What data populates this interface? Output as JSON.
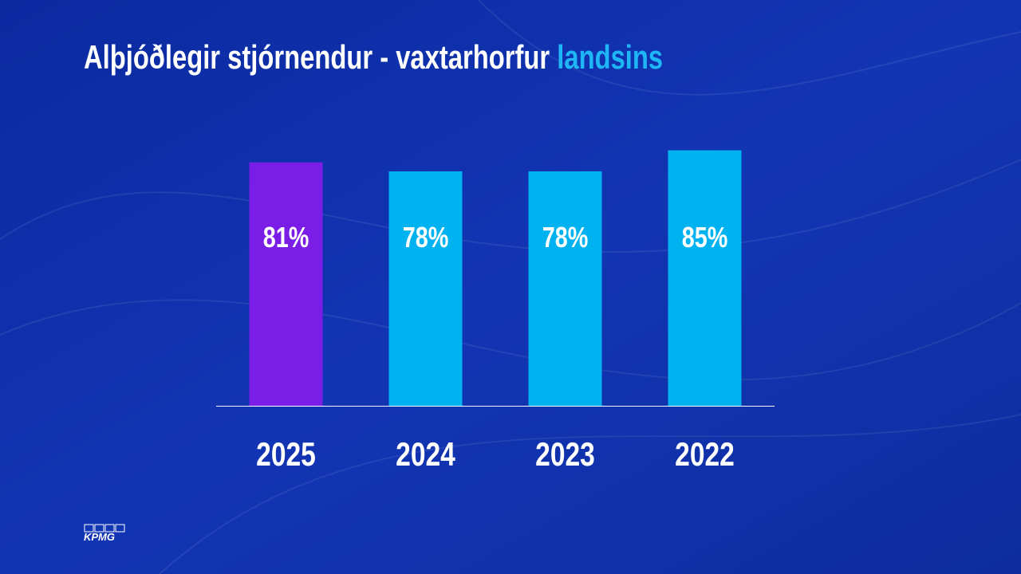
{
  "chart_data": {
    "type": "bar",
    "title": "Alþjóðlegir stjórnendur - vaxtarhorfur",
    "title_highlight": "landsins",
    "categories": [
      "2025",
      "2024",
      "2023",
      "2022"
    ],
    "values": [
      81,
      78,
      78,
      85
    ],
    "value_labels": [
      "81%",
      "78%",
      "78%",
      "85%"
    ],
    "colors": [
      "#7a1de6",
      "#00b3f0",
      "#00b3f0",
      "#00b3f0"
    ],
    "ylim": [
      0,
      100
    ]
  },
  "logo": "KPMG"
}
